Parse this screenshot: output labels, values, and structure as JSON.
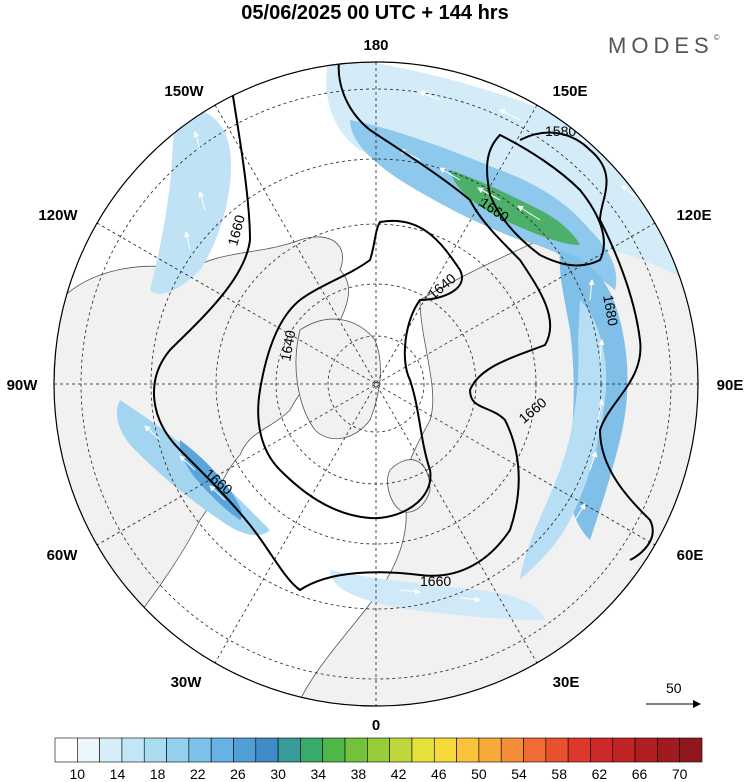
{
  "title": "05/06/2025  00 UTC  + 144 hrs",
  "brand": "MODES",
  "brand_mark": "©",
  "longitude_labels": {
    "lon_180": "180",
    "lon_150w": "150W",
    "lon_150e": "150E",
    "lon_120w": "120W",
    "lon_120e": "120E",
    "lon_90w": "90W",
    "lon_90e": "90E",
    "lon_60w": "60W",
    "lon_60e": "60E",
    "lon_30w": "30W",
    "lon_30e": "30E",
    "lon_0": "0"
  },
  "contour_labels": [
    "1580",
    "1660",
    "1680",
    "1640",
    "1640",
    "1660",
    "1660",
    "1660",
    "1660"
  ],
  "vector_reference": "50",
  "colorbar": {
    "ticks": [
      "10",
      "14",
      "18",
      "22",
      "26",
      "30",
      "34",
      "38",
      "42",
      "46",
      "50",
      "54",
      "58",
      "62",
      "66",
      "70"
    ],
    "colors": [
      "#ffffff",
      "#eaf6fc",
      "#d6eef9",
      "#c2e6f6",
      "#aadcf2",
      "#93d0ee",
      "#7cc2ea",
      "#66b2e2",
      "#529fd8",
      "#3f8cc9",
      "#3a9c9a",
      "#3aaa6a",
      "#4db848",
      "#72c23e",
      "#98cc3b",
      "#bfd73a",
      "#e5e13a",
      "#f7da3a",
      "#f8c23a",
      "#f7a93a",
      "#f48c38",
      "#f06c34",
      "#e85030",
      "#de382c",
      "#cf2a2a",
      "#c02424",
      "#b01f22",
      "#a01b20",
      "#90171c"
    ]
  },
  "colors": {
    "land": "#f2f2f2",
    "ocean": "#ffffff",
    "jet_light": "#cde9f7",
    "jet_mid": "#8cc8ec",
    "jet_strong": "#4f9fd8",
    "jet_core": "#4cae63"
  }
}
